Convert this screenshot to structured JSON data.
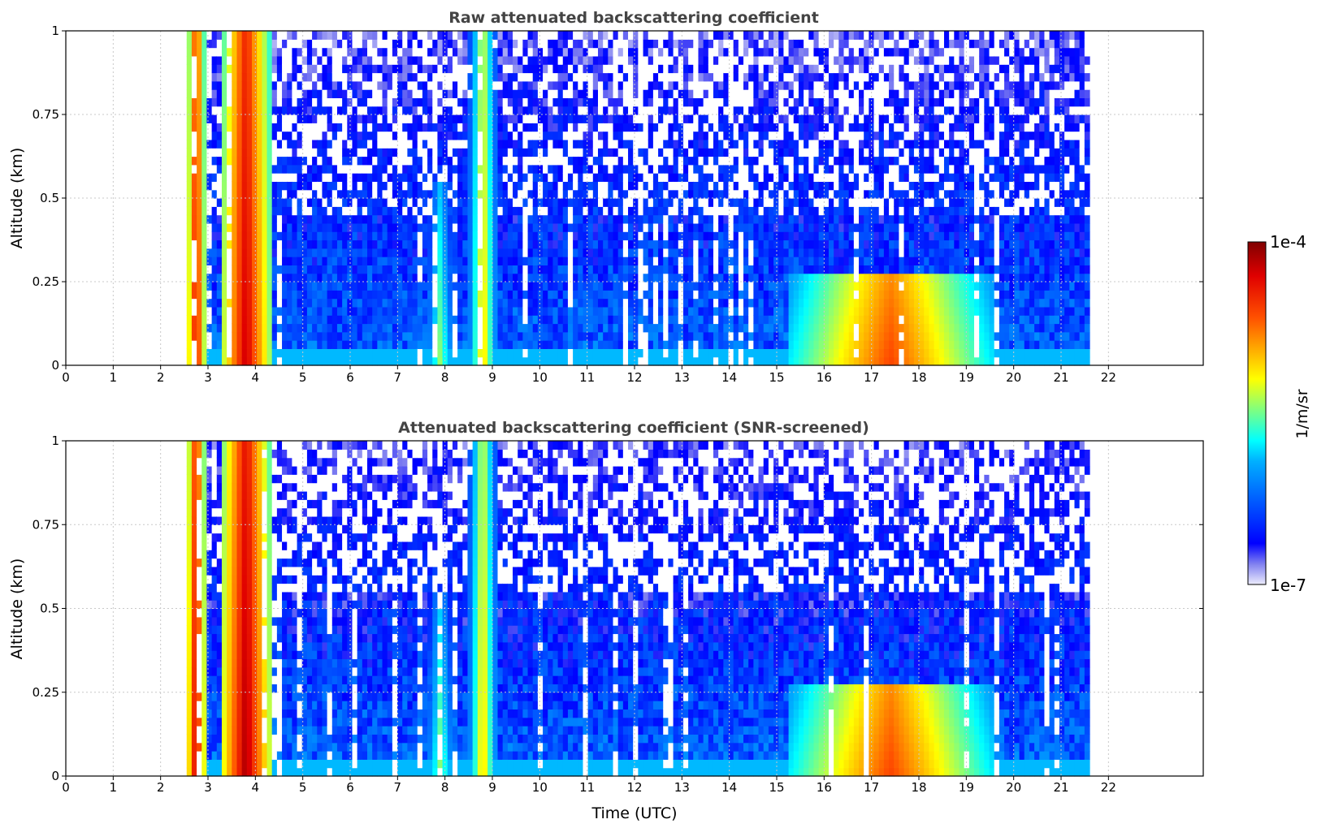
{
  "chart_data": [
    {
      "type": "heatmap",
      "title": "Raw attenuated backscattering coefficient",
      "xlabel": "",
      "ylabel": "Altitude (km)",
      "xlim": [
        0,
        24
      ],
      "ylim": [
        0,
        1
      ],
      "xticks": [
        "0",
        "1",
        "2",
        "3",
        "4",
        "5",
        "6",
        "7",
        "8",
        "9",
        "10",
        "11",
        "12",
        "13",
        "14",
        "15",
        "16",
        "17",
        "18",
        "19",
        "20",
        "21",
        "22"
      ],
      "yticks": [
        "0",
        "0.25",
        "0.5",
        "0.75",
        "1"
      ],
      "grid": true,
      "data_time_range": [
        2.55,
        21.6
      ],
      "features": [
        {
          "t_start": 2.55,
          "t_end": 2.95,
          "peak_log10": -4.3,
          "top_km": 1.0
        },
        {
          "t_start": 3.3,
          "t_end": 4.3,
          "peak_log10": -4.2,
          "top_km": 1.0
        },
        {
          "t_start": 7.5,
          "t_end": 8.3,
          "peak_log10": -5.4,
          "top_km": 0.55
        },
        {
          "t_start": 8.5,
          "t_end": 9.1,
          "peak_log10": -5.0,
          "top_km": 1.0
        },
        {
          "t_start": 15.2,
          "t_end": 19.6,
          "peak_log10": -4.6,
          "top_km": 0.27
        }
      ]
    },
    {
      "type": "heatmap",
      "title": "Attenuated backscattering coefficient (SNR-screened)",
      "xlabel": "Time (UTC)",
      "ylabel": "Altitude (km)",
      "xlim": [
        0,
        24
      ],
      "ylim": [
        0,
        1
      ],
      "xticks": [
        "0",
        "1",
        "2",
        "3",
        "4",
        "5",
        "6",
        "7",
        "8",
        "9",
        "10",
        "11",
        "12",
        "13",
        "14",
        "15",
        "16",
        "17",
        "18",
        "19",
        "20",
        "21",
        "22"
      ],
      "yticks": [
        "0",
        "0.25",
        "0.5",
        "0.75",
        "1"
      ],
      "grid": true,
      "data_time_range": [
        2.55,
        21.6
      ],
      "features": [
        {
          "t_start": 2.55,
          "t_end": 2.95,
          "peak_log10": -4.2,
          "top_km": 1.0
        },
        {
          "t_start": 3.3,
          "t_end": 4.3,
          "peak_log10": -4.1,
          "top_km": 1.0
        },
        {
          "t_start": 7.5,
          "t_end": 8.3,
          "peak_log10": -5.4,
          "top_km": 0.55
        },
        {
          "t_start": 8.5,
          "t_end": 9.1,
          "peak_log10": -5.0,
          "top_km": 1.0
        },
        {
          "t_start": 15.2,
          "t_end": 19.6,
          "peak_log10": -4.6,
          "top_km": 0.27
        }
      ]
    }
  ],
  "colorbar": {
    "label": "1/m/sr",
    "max_label": "1e-4",
    "min_label": "1e-7",
    "log10_range": [
      -7,
      -4
    ],
    "colormap": "jet"
  }
}
